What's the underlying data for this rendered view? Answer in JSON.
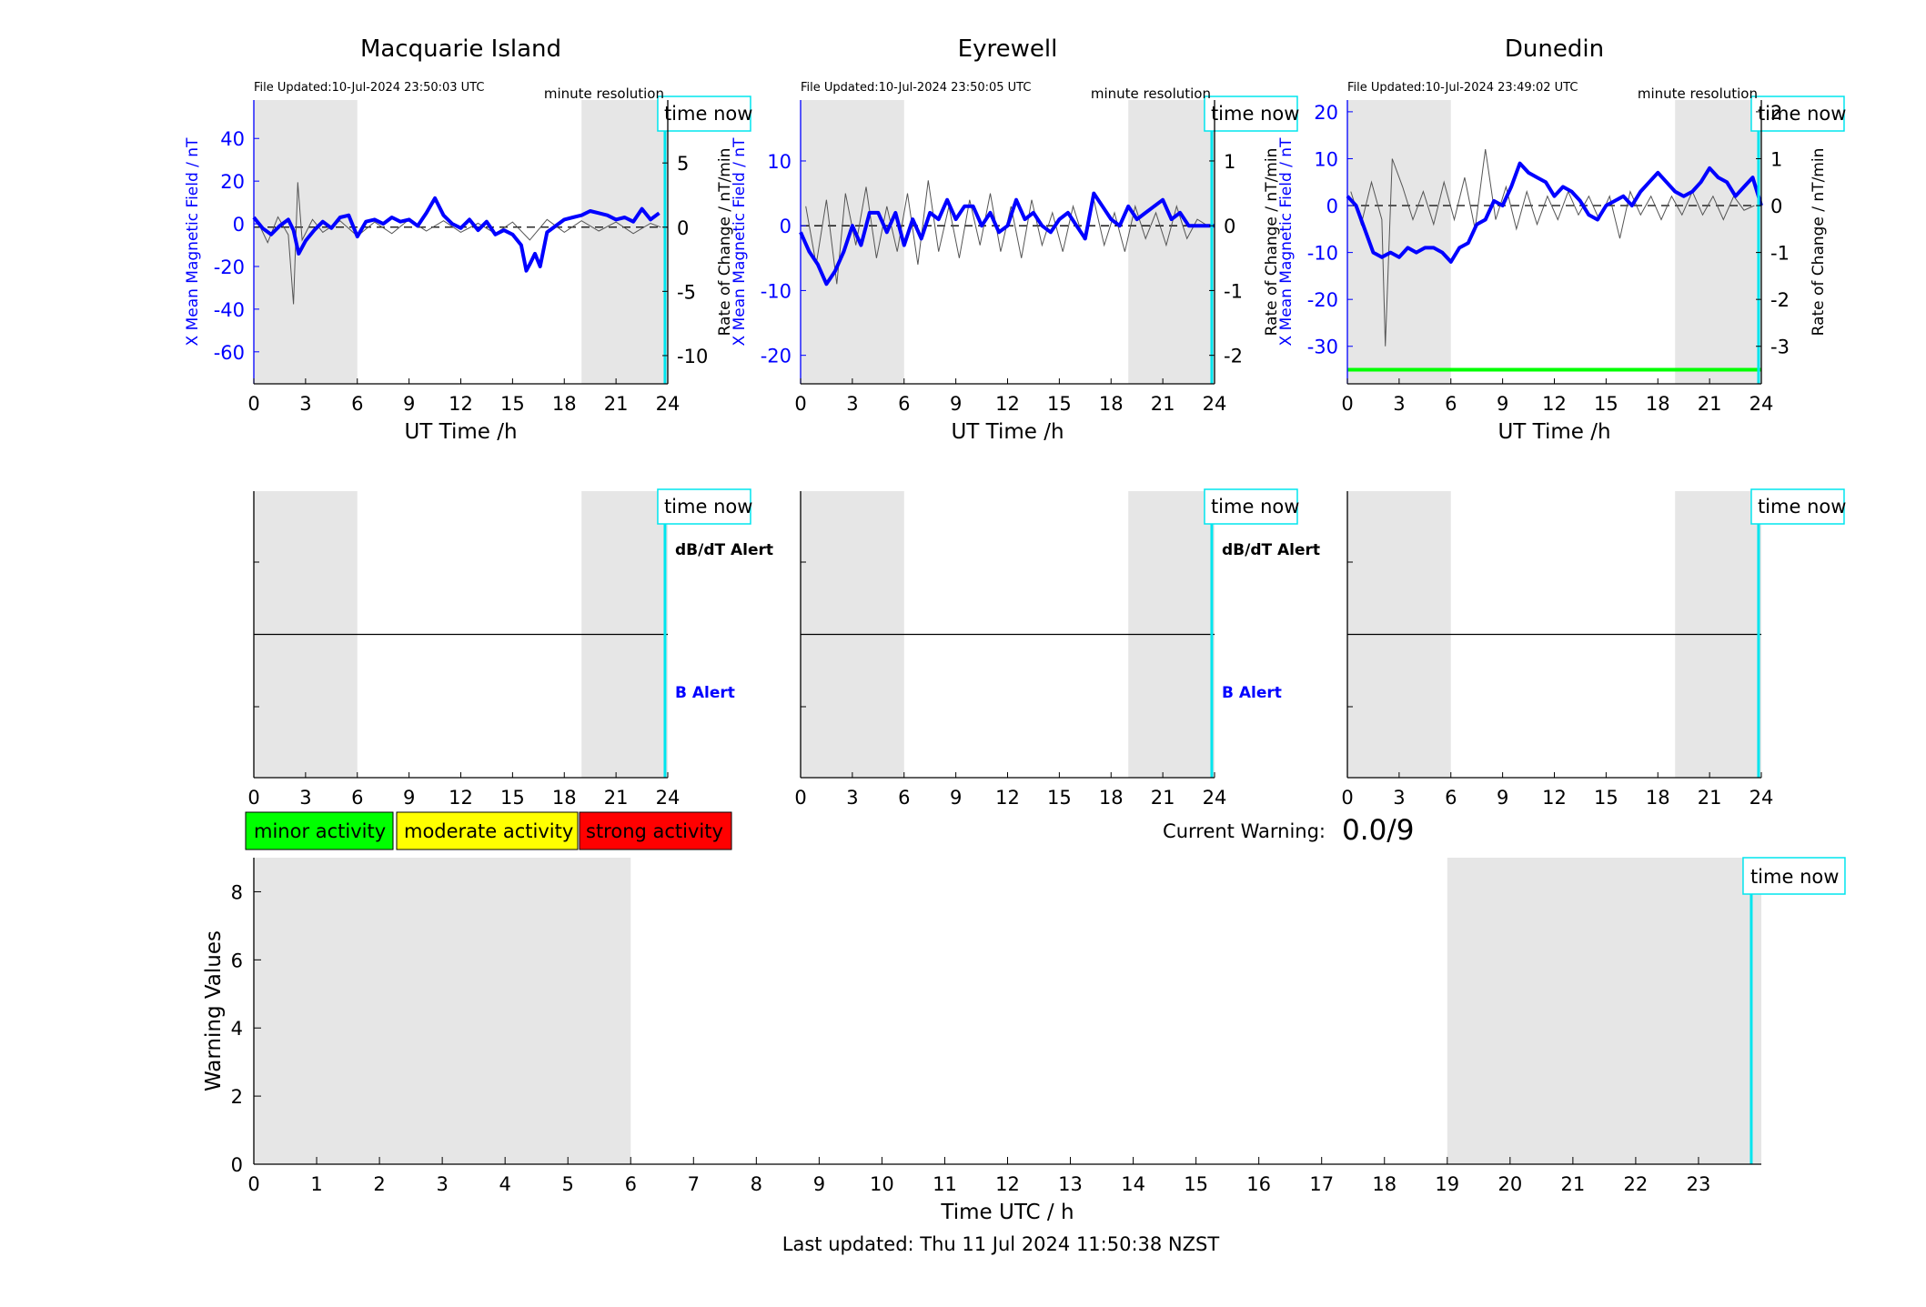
{
  "colors": {
    "night_shade": "#e6e6e6",
    "x_field": "#0000ff",
    "rate": "#555555",
    "time_now": "#00e5ee",
    "alert_green": "#00ff00",
    "minor": "#00ff00",
    "moderate": "#ffff00",
    "strong": "#ff0000"
  },
  "time_now_label": "time now",
  "res_label": "minute resolution",
  "x_axis_title": "UT Time /h",
  "x_ticks": [
    "0",
    "3",
    "6",
    "9",
    "12",
    "15",
    "18",
    "21",
    "24"
  ],
  "night_periods": [
    [
      0,
      6
    ],
    [
      19,
      24
    ]
  ],
  "time_now_hour": 23.84,
  "left_axis_title": "X Mean Magnetic Field / nT",
  "right_axis_title": "Rate of Change / nT/min",
  "stations": [
    {
      "name": "Macquarie Island",
      "file_updated": "File Updated:10-Jul-2024 23:50:03 UTC",
      "left_ticks": [
        "40",
        "20",
        "0",
        "-20",
        "-40",
        "-60"
      ],
      "left_tick_values": [
        40,
        20,
        0,
        -20,
        -40,
        -60
      ],
      "right_ticks": [
        "5",
        "0",
        "-5",
        "-10"
      ],
      "right_tick_values": [
        5,
        0,
        -5,
        -10
      ],
      "alert_dbdt": "dB/dT Alert",
      "alert_b": "B Alert"
    },
    {
      "name": "Eyrewell",
      "file_updated": "File Updated:10-Jul-2024 23:50:05 UTC",
      "left_ticks": [
        "10",
        "0",
        "-10",
        "-20"
      ],
      "left_tick_values": [
        10,
        0,
        -10,
        -20
      ],
      "right_ticks": [
        "1",
        "0",
        "-1",
        "-2"
      ],
      "right_tick_values": [
        1,
        0,
        -1,
        -2
      ],
      "alert_dbdt": "dB/dT Alert",
      "alert_b": "B Alert"
    },
    {
      "name": "Dunedin",
      "file_updated": "File Updated:10-Jul-2024 23:49:02 UTC",
      "left_ticks": [
        "20",
        "10",
        "0",
        "-10",
        "-20",
        "-30"
      ],
      "left_tick_values": [
        20,
        10,
        0,
        -10,
        -20,
        -30
      ],
      "right_ticks": [
        "2",
        "1",
        "0",
        "-1",
        "-2",
        "-3"
      ],
      "right_tick_values": [
        2,
        1,
        0,
        -1,
        -2,
        -3
      ],
      "alert_dbdt": "",
      "alert_b": ""
    }
  ],
  "chart_data": [
    {
      "type": "line",
      "title": "Macquarie Island",
      "xlabel": "UT Time /h",
      "ylabel": "X Mean Magnetic Field / nT",
      "ylabel_right": "Rate of Change / nT/min",
      "xlim": [
        0,
        24
      ],
      "ylim": [
        -75,
        58
      ],
      "ylim_right": [
        -12.2,
        9.9
      ],
      "series": [
        {
          "axis": "left",
          "x": [
            0,
            0.5,
            1,
            1.5,
            2,
            2.3,
            2.6,
            3,
            3.5,
            4,
            4.5,
            5,
            5.5,
            6,
            6.5,
            7,
            7.5,
            8,
            8.5,
            9,
            9.5,
            10,
            10.5,
            11,
            11.5,
            12,
            12.5,
            13,
            13.5,
            14,
            14.5,
            15,
            15.5,
            15.8,
            16,
            16.3,
            16.6,
            17,
            17.5,
            18,
            18.5,
            19,
            19.5,
            20,
            20.5,
            21,
            21.5,
            22,
            22.5,
            23,
            23.5
          ],
          "y": [
            3,
            -2,
            -5,
            -1,
            2,
            -3,
            -14,
            -8,
            -3,
            1,
            -2,
            3,
            4,
            -6,
            1,
            2,
            0,
            3,
            1,
            2,
            -1,
            5,
            12,
            4,
            0,
            -2,
            2,
            -3,
            1,
            -5,
            -3,
            -5,
            -10,
            -22,
            -19,
            -14,
            -20,
            -4,
            -1,
            2,
            3,
            4,
            6,
            5,
            4,
            2,
            3,
            1,
            7,
            2,
            5
          ]
        },
        {
          "axis": "right",
          "x": [
            0.2,
            0.8,
            1.4,
            2,
            2.3,
            2.55,
            2.8,
            3.4,
            4,
            5,
            6,
            7,
            8,
            9,
            10,
            11,
            12,
            13,
            14,
            15,
            16,
            17,
            18,
            19,
            20,
            21,
            22,
            23,
            23.6
          ],
          "y": [
            0.5,
            -1.2,
            0.8,
            -0.6,
            -6,
            3.5,
            -1,
            0.6,
            -0.4,
            0.5,
            -0.7,
            0.4,
            -0.5,
            0.6,
            -0.3,
            0.5,
            -0.4,
            0.3,
            -0.5,
            0.4,
            -1,
            0.6,
            -0.4,
            0.5,
            -0.3,
            0.4,
            -0.5,
            0.3,
            0
          ]
        }
      ]
    },
    {
      "type": "line",
      "title": "Eyrewell",
      "xlabel": "UT Time /h",
      "ylabel": "X Mean Magnetic Field / nT",
      "ylabel_right": "Rate of Change / nT/min",
      "xlim": [
        0,
        24
      ],
      "ylim": [
        -24.4,
        19.4
      ],
      "ylim_right": [
        -2.44,
        1.94
      ],
      "series": [
        {
          "axis": "left",
          "x": [
            0,
            0.5,
            1,
            1.5,
            2,
            2.5,
            3,
            3.5,
            4,
            4.5,
            5,
            5.5,
            6,
            6.5,
            7,
            7.5,
            8,
            8.5,
            9,
            9.5,
            10,
            10.5,
            11,
            11.5,
            12,
            12.5,
            13,
            13.5,
            14,
            14.5,
            15,
            15.5,
            16,
            16.5,
            17,
            17.5,
            18,
            18.5,
            19,
            19.5,
            20,
            20.5,
            21,
            21.5,
            22,
            22.5,
            23,
            23.5,
            24
          ],
          "y": [
            -1,
            -4,
            -6,
            -9,
            -7,
            -4,
            0,
            -3,
            2,
            2,
            -1,
            2,
            -3,
            1,
            -2,
            2,
            1,
            4,
            1,
            3,
            3,
            0,
            2,
            -1,
            0,
            4,
            1,
            2,
            0,
            -1,
            1,
            2,
            0,
            -2,
            5,
            3,
            1,
            0,
            3,
            1,
            2,
            3,
            4,
            1,
            2,
            0,
            0,
            0,
            0
          ]
        },
        {
          "axis": "right",
          "x": [
            0.3,
            0.9,
            1.5,
            2.1,
            2.6,
            3.2,
            3.8,
            4.4,
            5,
            5.6,
            6.2,
            6.8,
            7.4,
            8,
            8.6,
            9.2,
            9.8,
            10.4,
            11,
            11.6,
            12.2,
            12.8,
            13.4,
            14,
            14.6,
            15.2,
            15.8,
            16.4,
            17,
            17.6,
            18.2,
            18.8,
            19.4,
            20,
            20.6,
            21.2,
            21.8,
            22.4,
            23,
            23.6
          ],
          "y": [
            0.3,
            -0.6,
            0.4,
            -0.9,
            0.5,
            -0.3,
            0.6,
            -0.5,
            0.3,
            -0.4,
            0.5,
            -0.6,
            0.7,
            -0.4,
            0.3,
            -0.5,
            0.4,
            -0.3,
            0.5,
            -0.4,
            0.3,
            -0.5,
            0.4,
            -0.3,
            0.2,
            -0.4,
            0.3,
            -0.2,
            0.4,
            -0.3,
            0.2,
            -0.4,
            0.3,
            -0.2,
            0.2,
            -0.3,
            0.3,
            -0.2,
            0.1,
            0
          ]
        }
      ]
    },
    {
      "type": "line",
      "title": "Dunedin",
      "xlabel": "UT Time /h",
      "ylabel": "X Mean Magnetic Field / nT",
      "ylabel_right": "Rate of Change / nT/min",
      "xlim": [
        0,
        24
      ],
      "ylim": [
        -38,
        22.5
      ],
      "ylim_right": [
        -3.8,
        2.25
      ],
      "series": [
        {
          "axis": "left",
          "x": [
            0,
            0.5,
            1,
            1.5,
            2,
            2.5,
            3,
            3.5,
            4,
            4.5,
            5,
            5.5,
            6,
            6.5,
            7,
            7.5,
            8,
            8.5,
            9,
            9.5,
            10,
            10.5,
            11,
            11.5,
            12,
            12.5,
            13,
            13.5,
            14,
            14.5,
            15,
            15.5,
            16,
            16.5,
            17,
            17.5,
            18,
            18.5,
            19,
            19.5,
            20,
            20.5,
            21,
            21.5,
            22,
            22.5,
            23,
            23.5,
            24
          ],
          "y": [
            2,
            0,
            -5,
            -10,
            -11,
            -10,
            -11,
            -9,
            -10,
            -9,
            -9,
            -10,
            -12,
            -9,
            -8,
            -4,
            -3,
            1,
            0,
            4,
            9,
            7,
            6,
            5,
            2,
            4,
            3,
            1,
            -2,
            -3,
            0,
            1,
            2,
            0,
            3,
            5,
            7,
            5,
            3,
            2,
            3,
            5,
            8,
            6,
            5,
            2,
            4,
            6,
            0
          ]
        },
        {
          "axis": "right",
          "x": [
            0.2,
            0.8,
            1.4,
            2,
            2.2,
            2.6,
            3.2,
            3.8,
            4.4,
            5,
            5.6,
            6.2,
            6.8,
            7.4,
            8,
            8.6,
            9.2,
            9.8,
            10.4,
            11,
            11.6,
            12.2,
            12.8,
            13.4,
            14,
            14.6,
            15.2,
            15.8,
            16.4,
            17,
            17.6,
            18.2,
            18.8,
            19.4,
            20,
            20.6,
            21.2,
            21.8,
            22.4,
            23,
            23.6
          ],
          "y": [
            0.3,
            -0.4,
            0.5,
            -0.3,
            -3,
            1,
            0.4,
            -0.3,
            0.3,
            -0.4,
            0.5,
            -0.3,
            0.6,
            -0.5,
            1.2,
            -0.3,
            0.4,
            -0.5,
            0.3,
            -0.4,
            0.2,
            -0.3,
            0.3,
            -0.2,
            0.2,
            -0.3,
            0.2,
            -0.7,
            0.3,
            -0.2,
            0.2,
            -0.3,
            0.2,
            -0.2,
            0.3,
            -0.2,
            0.2,
            -0.3,
            0.2,
            -0.1,
            0
          ]
        }
      ],
      "alert_level_left": -35
    },
    {
      "type": "bar",
      "title": "",
      "xlabel": "Time UTC / h",
      "ylabel": "Warning Values",
      "xlim": [
        0,
        24
      ],
      "ylim": [
        0,
        9
      ],
      "x_ticks": [
        "0",
        "1",
        "2",
        "3",
        "4",
        "5",
        "6",
        "7",
        "8",
        "9",
        "10",
        "11",
        "12",
        "13",
        "14",
        "15",
        "16",
        "17",
        "18",
        "19",
        "20",
        "21",
        "22",
        "23"
      ],
      "y_ticks": [
        "8",
        "6",
        "4",
        "2",
        "0"
      ],
      "y_tick_values": [
        8,
        6,
        4,
        2,
        0
      ],
      "values": []
    }
  ],
  "legend": {
    "minor": "minor activity",
    "moderate": "moderate activity",
    "strong": "strong activity"
  },
  "current_warning_label": "Current Warning:",
  "current_warning_value": "0.0/9",
  "last_updated": "Last updated: Thu 11 Jul 2024 11:50:38 NZST"
}
